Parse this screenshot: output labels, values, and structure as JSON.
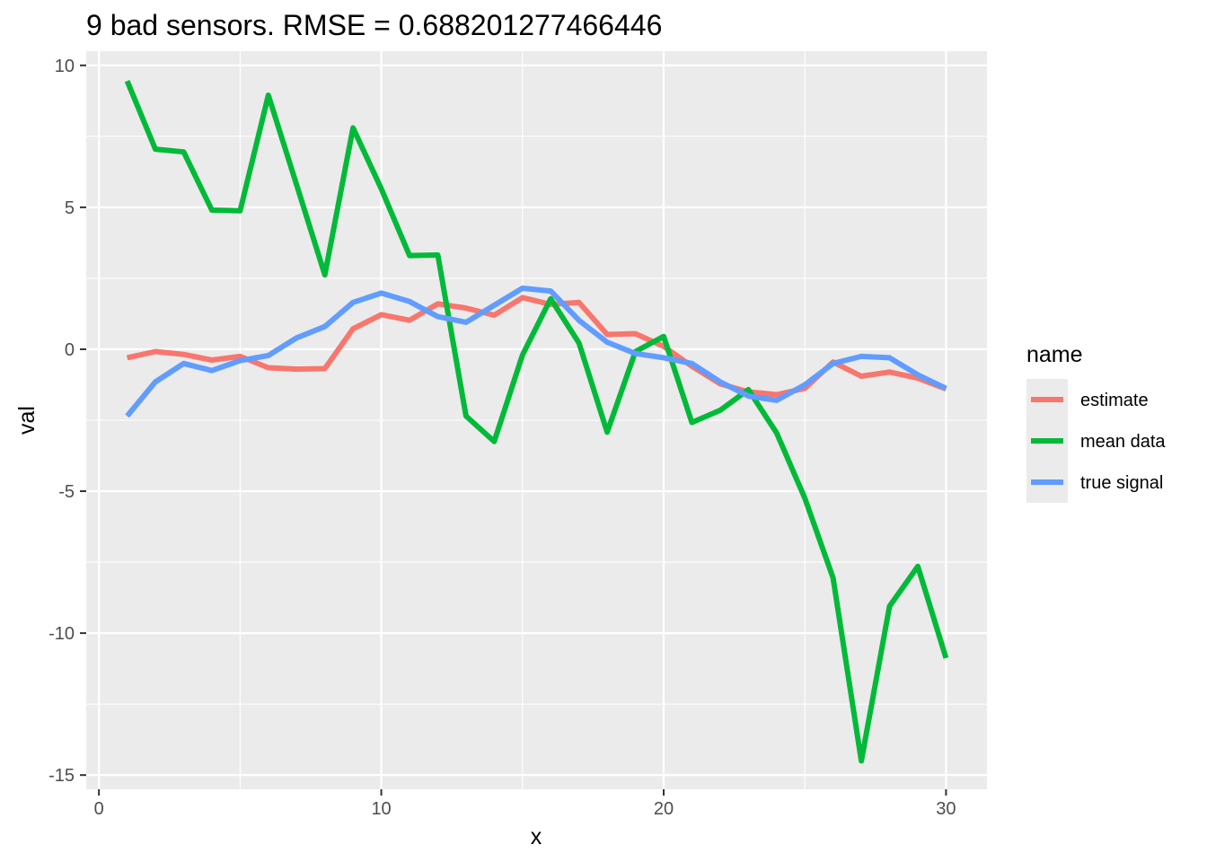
{
  "chart_data": {
    "type": "line",
    "title": "9 bad sensors. RMSE = 0.688201277466446",
    "xlabel": "x",
    "ylabel": "val",
    "xlim": [
      -0.45,
      31.45
    ],
    "ylim": [
      -15.5,
      10.5
    ],
    "x_ticks": [
      0,
      10,
      20,
      30
    ],
    "x_tick_labels": [
      "0",
      "10",
      "20",
      "30"
    ],
    "y_ticks": [
      10,
      5,
      0,
      -5,
      -10,
      -15
    ],
    "y_tick_labels": [
      "10",
      "5",
      "0",
      "-5",
      "-10",
      "-15"
    ],
    "grid": true,
    "legend": {
      "title": "name",
      "position": "right"
    },
    "x": [
      1,
      2,
      3,
      4,
      5,
      6,
      7,
      8,
      9,
      10,
      11,
      12,
      13,
      14,
      15,
      16,
      17,
      18,
      19,
      20,
      21,
      22,
      23,
      24,
      25,
      26,
      27,
      28,
      29,
      30
    ],
    "series": [
      {
        "name": "estimate",
        "color": "#F8766D",
        "values": [
          -0.3,
          -0.08,
          -0.18,
          -0.38,
          -0.25,
          -0.65,
          -0.7,
          -0.68,
          0.72,
          1.22,
          1.02,
          1.6,
          1.45,
          1.2,
          1.82,
          1.58,
          1.65,
          0.52,
          0.55,
          0.1,
          -0.6,
          -1.22,
          -1.5,
          -1.6,
          -1.38,
          -0.45,
          -0.95,
          -0.8,
          -1.02,
          -1.4
        ]
      },
      {
        "name": "mean data",
        "color": "#00BA38",
        "values": [
          9.45,
          7.05,
          6.95,
          4.9,
          4.88,
          8.95,
          5.8,
          2.62,
          7.8,
          5.65,
          3.3,
          3.32,
          -2.35,
          -3.25,
          -0.2,
          1.78,
          0.22,
          -2.92,
          -0.08,
          0.45,
          -2.58,
          -2.15,
          -1.42,
          -2.95,
          -5.25,
          -8.05,
          -14.5,
          -9.05,
          -7.65,
          -10.88
        ]
      },
      {
        "name": "true signal",
        "color": "#619CFF",
        "values": [
          -2.35,
          -1.15,
          -0.5,
          -0.75,
          -0.4,
          -0.22,
          0.4,
          0.8,
          1.65,
          1.98,
          1.68,
          1.15,
          0.95,
          1.55,
          2.15,
          2.05,
          1.02,
          0.25,
          -0.15,
          -0.3,
          -0.5,
          -1.15,
          -1.65,
          -1.8,
          -1.25,
          -0.5,
          -0.25,
          -0.3,
          -0.9,
          -1.38
        ]
      }
    ]
  }
}
